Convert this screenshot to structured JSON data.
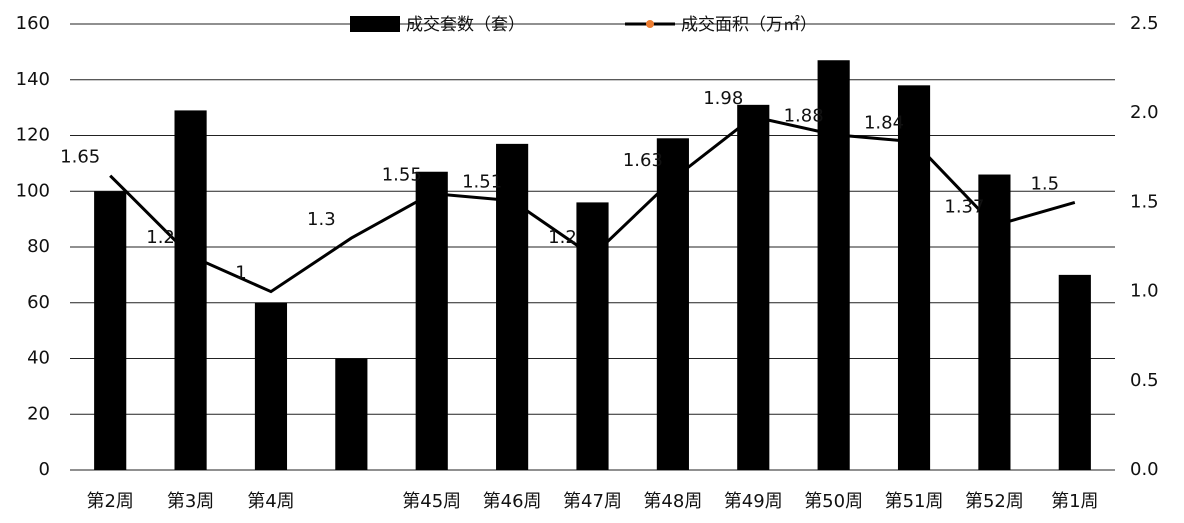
{
  "chart_data": {
    "type": "bar-line",
    "categories": [
      "第2周",
      "第3周",
      "第4周",
      null,
      "第45周",
      "第46周",
      "第47周",
      "第48周",
      "第49周",
      "第50周",
      "第51周",
      "第52周",
      "第1周"
    ],
    "series": [
      {
        "name": "成交套数（套）",
        "color": "#000000",
        "type": "bar",
        "values": [
          100,
          129,
          60,
          40,
          107,
          117,
          96,
          119,
          131,
          147,
          138,
          106,
          70
        ]
      },
      {
        "name": "成交面积（万㎡）",
        "color": "#000000",
        "marker_color": "#ed7d31",
        "type": "line",
        "axis": "y2",
        "values": [
          1.65,
          1.2,
          1.0,
          1.3,
          1.55,
          1.51,
          1.2,
          1.63,
          1.98,
          1.88,
          1.84,
          1.37,
          1.5
        ]
      }
    ],
    "ylim": [
      0,
      160
    ],
    "yticks": [
      0,
      20,
      40,
      60,
      80,
      100,
      120,
      140,
      160
    ],
    "y2lim": [
      0,
      2.5
    ],
    "y2ticks": [
      {
        "value": 0,
        "label": "0.0"
      },
      {
        "value": 0.5,
        "label": "0.5"
      },
      {
        "value": 1,
        "label": "1.0"
      },
      {
        "value": 1.5,
        "label": "1.5"
      },
      {
        "value": 2,
        "label": "2.0"
      },
      {
        "value": 2.5,
        "label": "2.5"
      }
    ],
    "grid": true
  }
}
